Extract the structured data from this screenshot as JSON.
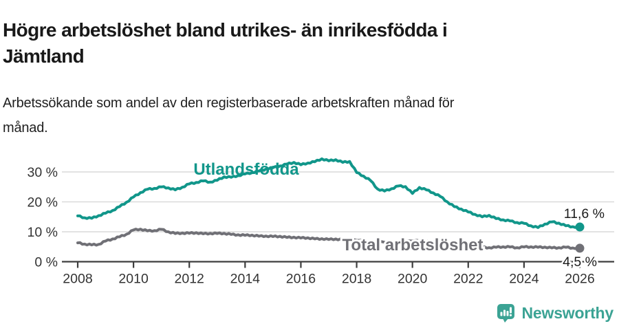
{
  "header": {
    "title": "Högre arbetslöshet bland utrikes- än inrikesfödda i Jämtland",
    "title_lines": [
      "Högre arbetslöshet bland utrikes- än inrikesfödda i",
      "Jämtland"
    ],
    "subtitle": "Arbetssökande som andel av den registerbaserade arbetskraften månad för månad.",
    "subtitle_lines": [
      "Arbetssökande som andel av den registerbaserade arbetskraften månad för",
      "månad."
    ]
  },
  "chart_data": {
    "type": "line",
    "title": "Högre arbetslöshet bland utrikes- än inrikesfödda i Jämtland",
    "subtitle": "Arbetssökande som andel av den registerbaserade arbetskraften månad för månad.",
    "grid": "horizontal",
    "legend_position": "inline-labels",
    "x_axis": {
      "range": [
        2008,
        2026
      ],
      "ticks": [
        {
          "value": 2008,
          "label": "2008"
        },
        {
          "value": 2010,
          "label": "2010"
        },
        {
          "value": 2012,
          "label": "2012"
        },
        {
          "value": 2014,
          "label": "2014"
        },
        {
          "value": 2016,
          "label": "2016"
        },
        {
          "value": 2018,
          "label": "2018"
        },
        {
          "value": 2020,
          "label": "2020"
        },
        {
          "value": 2022,
          "label": "2022"
        },
        {
          "value": 2024,
          "label": "2024"
        },
        {
          "value": 2026,
          "label": "2026"
        }
      ]
    },
    "y_axis": {
      "range": [
        0,
        36
      ],
      "unit": "%",
      "ticks": [
        {
          "value": 0,
          "label": "0 %"
        },
        {
          "value": 10,
          "label": "10 %"
        },
        {
          "value": 20,
          "label": "20 %"
        },
        {
          "value": 30,
          "label": "30 %"
        }
      ]
    },
    "colors": {
      "grid": "#d9d9d9",
      "axis": "#3d3d3d",
      "tick_text": "#333333",
      "value_text": "#1a1a1a"
    },
    "series": [
      {
        "name": "Utlandsfödda",
        "color": "#11968a",
        "end_value": 11.6,
        "end_label": "11,6 %",
        "points": [
          [
            2008,
            15.3
          ],
          [
            2008.25,
            14.7
          ],
          [
            2008.5,
            14.5
          ],
          [
            2008.75,
            15.4
          ],
          [
            2009,
            16.2
          ],
          [
            2009.25,
            17.1
          ],
          [
            2009.5,
            18.4
          ],
          [
            2009.75,
            19.9
          ],
          [
            2010,
            21.6
          ],
          [
            2010.25,
            23.1
          ],
          [
            2010.5,
            24.2
          ],
          [
            2010.75,
            24.5
          ],
          [
            2011,
            25.0
          ],
          [
            2011.25,
            24.7
          ],
          [
            2011.5,
            24.0
          ],
          [
            2011.75,
            24.9
          ],
          [
            2012,
            26.0
          ],
          [
            2012.25,
            26.5
          ],
          [
            2012.5,
            27.0
          ],
          [
            2012.75,
            26.6
          ],
          [
            2013,
            27.2
          ],
          [
            2013.25,
            28.4
          ],
          [
            2013.5,
            28.2
          ],
          [
            2013.75,
            28.8
          ],
          [
            2014,
            29.3
          ],
          [
            2014.25,
            29.8
          ],
          [
            2014.5,
            30.3
          ],
          [
            2014.75,
            31.0
          ],
          [
            2015,
            31.4
          ],
          [
            2015.25,
            32.0
          ],
          [
            2015.5,
            32.6
          ],
          [
            2015.75,
            33.2
          ],
          [
            2016,
            32.4
          ],
          [
            2016.25,
            33.0
          ],
          [
            2016.5,
            33.4
          ],
          [
            2016.75,
            34.4
          ],
          [
            2017,
            33.7
          ],
          [
            2017.25,
            34.1
          ],
          [
            2017.5,
            33.2
          ],
          [
            2017.75,
            33.5
          ],
          [
            2018,
            29.8
          ],
          [
            2018.25,
            28.6
          ],
          [
            2018.5,
            27.1
          ],
          [
            2018.75,
            24.3
          ],
          [
            2019,
            23.6
          ],
          [
            2019.25,
            24.4
          ],
          [
            2019.5,
            25.3
          ],
          [
            2019.75,
            25.1
          ],
          [
            2020,
            22.8
          ],
          [
            2020.25,
            24.8
          ],
          [
            2020.5,
            24.0
          ],
          [
            2020.75,
            23.0
          ],
          [
            2021,
            21.8
          ],
          [
            2021.25,
            20.0
          ],
          [
            2021.5,
            18.4
          ],
          [
            2021.75,
            17.6
          ],
          [
            2022,
            16.6
          ],
          [
            2022.25,
            15.8
          ],
          [
            2022.5,
            15.0
          ],
          [
            2022.75,
            15.5
          ],
          [
            2023,
            14.4
          ],
          [
            2023.25,
            14.0
          ],
          [
            2023.5,
            13.6
          ],
          [
            2023.75,
            13.1
          ],
          [
            2024,
            12.8
          ],
          [
            2024.25,
            12.0
          ],
          [
            2024.5,
            11.4
          ],
          [
            2024.75,
            12.6
          ],
          [
            2025,
            13.3
          ],
          [
            2025.25,
            12.9
          ],
          [
            2025.5,
            12.0
          ],
          [
            2025.75,
            11.7
          ],
          [
            2026,
            11.6
          ]
        ]
      },
      {
        "name": "Total arbetslöshet",
        "color": "#707076",
        "end_value": 4.5,
        "end_label": "4,5 %",
        "points": [
          [
            2008,
            6.3
          ],
          [
            2008.25,
            5.9
          ],
          [
            2008.5,
            5.6
          ],
          [
            2008.75,
            5.8
          ],
          [
            2009,
            6.9
          ],
          [
            2009.25,
            7.6
          ],
          [
            2009.5,
            8.3
          ],
          [
            2009.75,
            9.2
          ],
          [
            2010,
            10.6
          ],
          [
            2010.25,
            10.9
          ],
          [
            2010.5,
            10.3
          ],
          [
            2010.75,
            10.4
          ],
          [
            2011,
            10.8
          ],
          [
            2011.25,
            10.0
          ],
          [
            2011.5,
            9.4
          ],
          [
            2011.75,
            9.6
          ],
          [
            2012,
            9.5
          ],
          [
            2012.25,
            9.7
          ],
          [
            2012.5,
            9.3
          ],
          [
            2012.75,
            9.5
          ],
          [
            2013,
            9.4
          ],
          [
            2013.25,
            9.5
          ],
          [
            2013.5,
            9.1
          ],
          [
            2013.75,
            9.0
          ],
          [
            2014,
            8.8
          ],
          [
            2014.25,
            8.9
          ],
          [
            2014.5,
            8.5
          ],
          [
            2014.75,
            8.6
          ],
          [
            2015,
            8.4
          ],
          [
            2015.25,
            8.5
          ],
          [
            2015.5,
            8.1
          ],
          [
            2015.75,
            8.2
          ],
          [
            2016,
            7.9
          ],
          [
            2016.25,
            8.0
          ],
          [
            2016.5,
            7.6
          ],
          [
            2016.75,
            7.7
          ],
          [
            2017,
            7.4
          ],
          [
            2017.25,
            7.6
          ],
          [
            2017.5,
            7.3
          ],
          [
            2017.75,
            7.2
          ],
          [
            2018,
            7.1
          ],
          [
            2018.5,
            6.8
          ],
          [
            2019,
            6.5
          ],
          [
            2019.5,
            6.6
          ],
          [
            2020,
            6.9
          ],
          [
            2020.5,
            7.0
          ],
          [
            2021,
            6.4
          ],
          [
            2021.5,
            5.8
          ],
          [
            2022,
            5.2
          ],
          [
            2022.25,
            5.0
          ],
          [
            2022.5,
            4.8
          ],
          [
            2022.75,
            4.7
          ],
          [
            2023,
            4.8
          ],
          [
            2023.25,
            5.0
          ],
          [
            2023.5,
            4.9
          ],
          [
            2023.75,
            4.7
          ],
          [
            2024,
            4.9
          ],
          [
            2024.25,
            5.0
          ],
          [
            2024.5,
            4.8
          ],
          [
            2024.75,
            4.9
          ],
          [
            2025,
            4.6
          ],
          [
            2025.25,
            4.7
          ],
          [
            2025.5,
            4.8
          ],
          [
            2025.75,
            4.6
          ],
          [
            2026,
            4.5
          ]
        ]
      }
    ]
  },
  "footer": {
    "brand": "Newsworthy",
    "brand_color": "#3ba394",
    "logo_icon": "bar-chart-speech-bubble-icon"
  }
}
